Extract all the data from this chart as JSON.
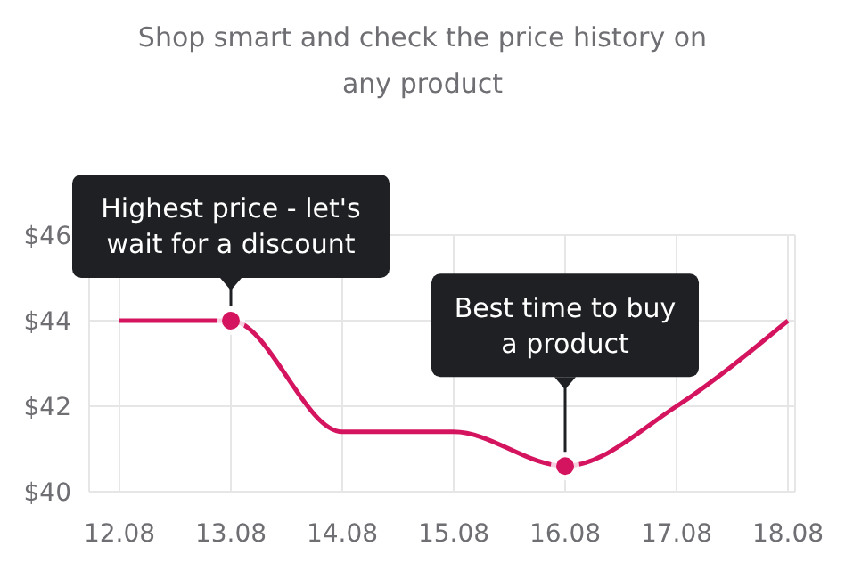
{
  "chart_data": {
    "type": "line",
    "title": "Shop smart and check the price history on any product",
    "categories": [
      "12.08",
      "13.08",
      "14.08",
      "15.08",
      "16.08",
      "17.08",
      "18.08"
    ],
    "series": [
      {
        "color": "#d5145f",
        "values": [
          44,
          44,
          41.4,
          41.4,
          40.6,
          42,
          44
        ]
      }
    ],
    "ylim": [
      40,
      46
    ],
    "yticks": [
      {
        "value": 40,
        "label": "$40"
      },
      {
        "value": 42,
        "label": "$42"
      },
      {
        "value": 44,
        "label": "$44"
      },
      {
        "value": 46,
        "label": "$46"
      }
    ],
    "grid": true,
    "marker": "none",
    "line_style": "solid",
    "annotations": [
      {
        "text": "Highest price - let's wait for a discount",
        "x": "13.08",
        "y": 44
      },
      {
        "text": "Best time to buy a product",
        "x": "16.08",
        "y": 40.6
      }
    ]
  }
}
